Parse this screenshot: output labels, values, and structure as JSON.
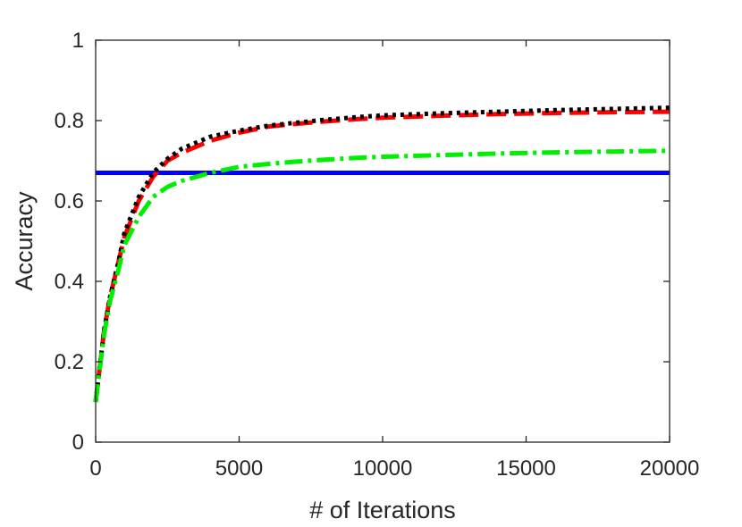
{
  "chart_data": {
    "type": "line",
    "xlabel": "# of Iterations",
    "ylabel": "Accuracy",
    "xlim": [
      0,
      20000
    ],
    "ylim": [
      0,
      1
    ],
    "x_ticks": [
      0,
      5000,
      10000,
      15000,
      20000
    ],
    "x_tick_labels": [
      "0",
      "5000",
      "10000",
      "15000",
      "20000"
    ],
    "y_ticks": [
      0,
      0.2,
      0.4,
      0.6,
      0.8,
      1
    ],
    "y_tick_labels": [
      "0",
      "0.2",
      "0.4",
      "0.6",
      "0.8",
      "1"
    ],
    "grid": false,
    "box": true,
    "series": [
      {
        "color": "#0000ff",
        "line_style": "solid",
        "x": [
          0,
          20000
        ],
        "y": [
          0.67,
          0.67
        ]
      },
      {
        "color": "#ff0000",
        "line_style": "dashed",
        "x": [
          0,
          300,
          500,
          800,
          1000,
          1500,
          2000,
          2500,
          3000,
          4000,
          5000,
          6000,
          7000,
          8000,
          9000,
          10000,
          12000,
          14000,
          16000,
          18000,
          20000
        ],
        "y": [
          0.1,
          0.28,
          0.36,
          0.45,
          0.51,
          0.6,
          0.66,
          0.7,
          0.72,
          0.75,
          0.77,
          0.785,
          0.792,
          0.798,
          0.803,
          0.807,
          0.812,
          0.816,
          0.819,
          0.821,
          0.822
        ]
      },
      {
        "color": "#000000",
        "line_style": "dotted",
        "x": [
          0,
          300,
          500,
          800,
          1000,
          1500,
          2000,
          2500,
          3000,
          4000,
          5000,
          6000,
          7000,
          8000,
          9000,
          10000,
          12000,
          14000,
          16000,
          18000,
          20000
        ],
        "y": [
          0.1,
          0.28,
          0.36,
          0.45,
          0.52,
          0.61,
          0.67,
          0.705,
          0.73,
          0.76,
          0.775,
          0.787,
          0.795,
          0.802,
          0.808,
          0.813,
          0.818,
          0.822,
          0.826,
          0.829,
          0.832
        ]
      },
      {
        "color": "#00ee00",
        "line_style": "dashdot",
        "x": [
          0,
          300,
          500,
          800,
          1000,
          1500,
          2000,
          2500,
          3000,
          4000,
          5000,
          6000,
          7000,
          8000,
          9000,
          10000,
          12000,
          14000,
          16000,
          18000,
          20000
        ],
        "y": [
          0.1,
          0.27,
          0.35,
          0.43,
          0.49,
          0.56,
          0.61,
          0.635,
          0.65,
          0.67,
          0.685,
          0.692,
          0.698,
          0.703,
          0.707,
          0.71,
          0.714,
          0.718,
          0.721,
          0.723,
          0.725
        ]
      }
    ]
  }
}
